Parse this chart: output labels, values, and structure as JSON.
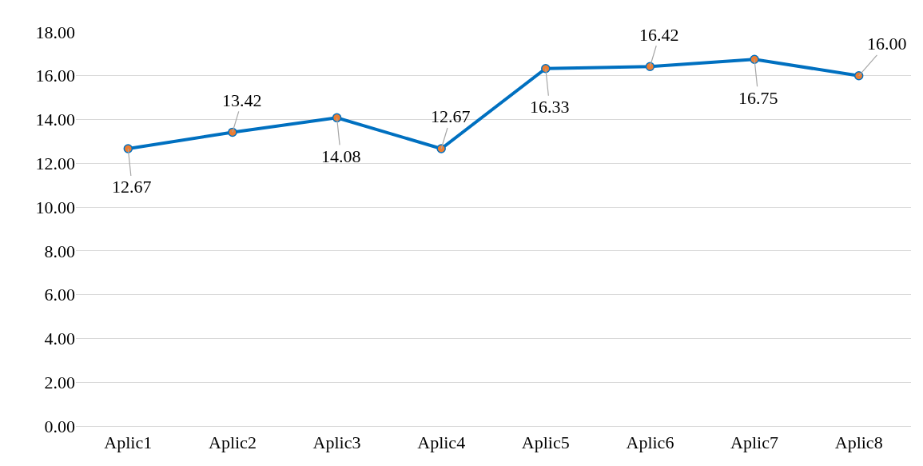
{
  "chart_data": {
    "type": "line",
    "categories": [
      "Aplic1",
      "Aplic2",
      "Aplic3",
      "Aplic4",
      "Aplic5",
      "Aplic6",
      "Aplic7",
      "Aplic8"
    ],
    "series": [
      {
        "color": "#0070c0",
        "colors": [
          "#ed7d31",
          "#ed7d31",
          "#ed7d31",
          "#ed7d31",
          "#ed7d31",
          "#ed7d31",
          "#ed7d31",
          "#ed7d31"
        ],
        "values": [
          12.67,
          13.42,
          14.08,
          12.67,
          16.33,
          16.42,
          16.75,
          16.0
        ],
        "value_labels": [
          "12.67",
          "13.42",
          "14.08",
          "12.67",
          "16.33",
          "16.42",
          "16.75",
          "16.00"
        ]
      }
    ],
    "ylim": [
      0,
      18
    ],
    "yticks": [
      {
        "value": 0,
        "label": "0.00"
      },
      {
        "value": 2,
        "label": "2.00"
      },
      {
        "value": 4,
        "label": "4.00"
      },
      {
        "value": 6,
        "label": "6.00"
      },
      {
        "value": 8,
        "label": "8.00"
      },
      {
        "value": 10,
        "label": "10.00"
      },
      {
        "value": 12,
        "label": "12.00"
      },
      {
        "value": 14,
        "label": "14.00"
      },
      {
        "value": 16,
        "label": "16.00"
      },
      {
        "value": 18,
        "label": "18.00"
      }
    ],
    "grid": "y",
    "marker": "circle",
    "line_style": "solid"
  }
}
